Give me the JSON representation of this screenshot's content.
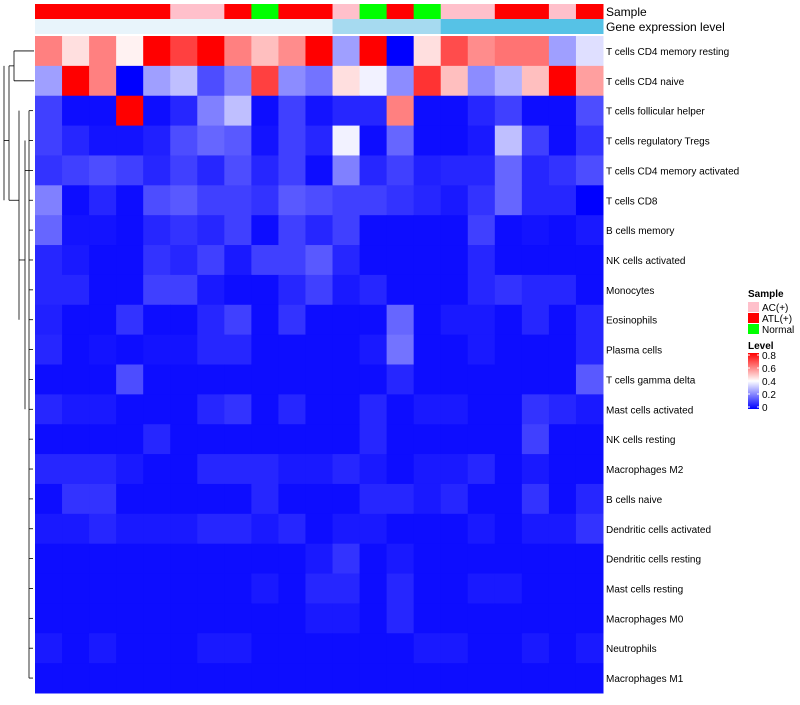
{
  "chart_data": {
    "type": "heatmap",
    "title": "",
    "annotation_tracks": [
      {
        "name": "Sample",
        "values": [
          "ATL(+)",
          "ATL(+)",
          "ATL(+)",
          "ATL(+)",
          "ATL(+)",
          "AC(+)",
          "AC(+)",
          "ATL(+)",
          "Normal",
          "ATL(+)",
          "ATL(+)",
          "AC(+)",
          "Normal",
          "ATL(+)",
          "Normal",
          "AC(+)",
          "AC(+)",
          "ATL(+)",
          "ATL(+)",
          "AC(+)",
          "ATL(+)"
        ]
      },
      {
        "name": "Gene expression level",
        "values": [
          "low",
          "low",
          "low",
          "low",
          "low",
          "low",
          "low",
          "low",
          "low",
          "low",
          "low",
          "mid",
          "mid",
          "mid",
          "mid",
          "high",
          "high",
          "high",
          "high",
          "high",
          "high"
        ]
      }
    ],
    "rows": [
      "T cells CD4 memory resting",
      "T cells CD4 naive",
      "T cells follicular helper",
      "T cells regulatory  Tregs",
      "T cells CD4 memory activated",
      "T cells CD8",
      "B cells memory",
      "NK cells activated",
      "Monocytes",
      "Eosinophils",
      "Plasma cells",
      "T cells gamma delta",
      "Mast cells activated",
      "NK cells resting",
      "Macrophages M2",
      "B cells naive",
      "Dendritic cells activated",
      "Dendritic cells resting",
      "Mast cells resting",
      "Macrophages M0",
      "Neutrophils",
      "Macrophages M1"
    ],
    "values": [
      [
        0.6,
        0.45,
        0.6,
        0.42,
        0.8,
        0.7,
        0.8,
        0.6,
        0.5,
        0.58,
        0.8,
        0.25,
        0.8,
        0.0,
        0.45,
        0.68,
        0.58,
        0.62,
        0.62,
        0.25,
        0.35
      ],
      [
        0.25,
        0.8,
        0.6,
        0.0,
        0.25,
        0.3,
        0.12,
        0.2,
        0.7,
        0.22,
        0.18,
        0.45,
        0.38,
        0.22,
        0.72,
        0.5,
        0.22,
        0.28,
        0.5,
        0.8,
        0.55
      ],
      [
        0.1,
        0.02,
        0.02,
        0.8,
        0.02,
        0.06,
        0.2,
        0.3,
        0.02,
        0.1,
        0.03,
        0.06,
        0.06,
        0.6,
        0.02,
        0.02,
        0.06,
        0.1,
        0.02,
        0.02,
        0.12
      ],
      [
        0.1,
        0.06,
        0.03,
        0.03,
        0.05,
        0.12,
        0.16,
        0.14,
        0.03,
        0.1,
        0.06,
        0.38,
        0.02,
        0.16,
        0.02,
        0.02,
        0.04,
        0.3,
        0.1,
        0.02,
        0.08
      ],
      [
        0.08,
        0.1,
        0.12,
        0.1,
        0.06,
        0.1,
        0.06,
        0.12,
        0.06,
        0.1,
        0.02,
        0.2,
        0.06,
        0.1,
        0.05,
        0.06,
        0.06,
        0.16,
        0.06,
        0.08,
        0.12
      ],
      [
        0.2,
        0.02,
        0.06,
        0.02,
        0.12,
        0.14,
        0.1,
        0.1,
        0.08,
        0.14,
        0.12,
        0.1,
        0.1,
        0.08,
        0.06,
        0.04,
        0.08,
        0.16,
        0.06,
        0.06,
        0.0
      ],
      [
        0.16,
        0.03,
        0.03,
        0.02,
        0.06,
        0.08,
        0.06,
        0.1,
        0.02,
        0.1,
        0.06,
        0.1,
        0.02,
        0.02,
        0.02,
        0.02,
        0.1,
        0.02,
        0.03,
        0.02,
        0.04
      ],
      [
        0.06,
        0.04,
        0.02,
        0.02,
        0.08,
        0.06,
        0.1,
        0.04,
        0.1,
        0.1,
        0.14,
        0.06,
        0.02,
        0.02,
        0.02,
        0.02,
        0.06,
        0.02,
        0.02,
        0.02,
        0.02
      ],
      [
        0.06,
        0.06,
        0.02,
        0.02,
        0.1,
        0.1,
        0.04,
        0.02,
        0.02,
        0.06,
        0.1,
        0.04,
        0.06,
        0.02,
        0.02,
        0.02,
        0.06,
        0.08,
        0.06,
        0.06,
        0.02
      ],
      [
        0.05,
        0.02,
        0.02,
        0.08,
        0.02,
        0.02,
        0.06,
        0.1,
        0.02,
        0.08,
        0.02,
        0.02,
        0.02,
        0.16,
        0.02,
        0.04,
        0.04,
        0.02,
        0.06,
        0.02,
        0.06
      ],
      [
        0.06,
        0.02,
        0.03,
        0.02,
        0.03,
        0.03,
        0.06,
        0.06,
        0.02,
        0.02,
        0.02,
        0.02,
        0.04,
        0.18,
        0.02,
        0.02,
        0.04,
        0.02,
        0.02,
        0.02,
        0.06
      ],
      [
        0.02,
        0.02,
        0.02,
        0.12,
        0.02,
        0.02,
        0.02,
        0.02,
        0.02,
        0.02,
        0.02,
        0.02,
        0.02,
        0.06,
        0.02,
        0.02,
        0.02,
        0.02,
        0.02,
        0.02,
        0.14
      ],
      [
        0.06,
        0.04,
        0.04,
        0.02,
        0.02,
        0.02,
        0.06,
        0.08,
        0.02,
        0.06,
        0.02,
        0.02,
        0.06,
        0.02,
        0.04,
        0.04,
        0.02,
        0.02,
        0.08,
        0.06,
        0.04
      ],
      [
        0.02,
        0.02,
        0.02,
        0.02,
        0.06,
        0.02,
        0.02,
        0.02,
        0.02,
        0.02,
        0.02,
        0.02,
        0.06,
        0.02,
        0.02,
        0.02,
        0.02,
        0.02,
        0.1,
        0.02,
        0.02
      ],
      [
        0.06,
        0.06,
        0.06,
        0.04,
        0.02,
        0.02,
        0.06,
        0.06,
        0.06,
        0.04,
        0.04,
        0.06,
        0.04,
        0.02,
        0.04,
        0.04,
        0.06,
        0.02,
        0.04,
        0.02,
        0.02
      ],
      [
        0.02,
        0.08,
        0.08,
        0.02,
        0.02,
        0.02,
        0.02,
        0.02,
        0.06,
        0.02,
        0.02,
        0.02,
        0.06,
        0.06,
        0.04,
        0.06,
        0.02,
        0.02,
        0.08,
        0.02,
        0.06
      ],
      [
        0.04,
        0.04,
        0.06,
        0.04,
        0.04,
        0.04,
        0.06,
        0.06,
        0.04,
        0.06,
        0.02,
        0.04,
        0.04,
        0.02,
        0.02,
        0.02,
        0.04,
        0.02,
        0.04,
        0.04,
        0.08
      ],
      [
        0.02,
        0.02,
        0.02,
        0.02,
        0.02,
        0.02,
        0.02,
        0.02,
        0.02,
        0.02,
        0.04,
        0.08,
        0.02,
        0.04,
        0.02,
        0.02,
        0.02,
        0.02,
        0.02,
        0.02,
        0.02
      ],
      [
        0.02,
        0.02,
        0.02,
        0.02,
        0.02,
        0.02,
        0.02,
        0.02,
        0.04,
        0.02,
        0.06,
        0.06,
        0.02,
        0.06,
        0.02,
        0.02,
        0.04,
        0.04,
        0.02,
        0.02,
        0.02
      ],
      [
        0.02,
        0.02,
        0.02,
        0.02,
        0.02,
        0.02,
        0.02,
        0.02,
        0.02,
        0.02,
        0.04,
        0.04,
        0.02,
        0.06,
        0.02,
        0.02,
        0.02,
        0.02,
        0.02,
        0.02,
        0.02
      ],
      [
        0.04,
        0.02,
        0.04,
        0.02,
        0.02,
        0.02,
        0.04,
        0.04,
        0.02,
        0.02,
        0.02,
        0.02,
        0.02,
        0.02,
        0.04,
        0.04,
        0.02,
        0.02,
        0.04,
        0.02,
        0.04
      ],
      [
        0.02,
        0.02,
        0.02,
        0.02,
        0.02,
        0.02,
        0.02,
        0.02,
        0.02,
        0.02,
        0.02,
        0.02,
        0.02,
        0.02,
        0.02,
        0.02,
        0.02,
        0.02,
        0.02,
        0.02,
        0.02
      ]
    ],
    "color_scale": {
      "low": "#0000ff",
      "mid": "#ffffff",
      "high": "#ff0000",
      "min": 0,
      "mid_value": 0.4,
      "max": 0.8
    },
    "legends": {
      "sample": {
        "title": "Sample",
        "items": [
          {
            "label": "AC(+)",
            "color": "#ffc0cb"
          },
          {
            "label": "ATL(+)",
            "color": "#ff0000"
          },
          {
            "label": "Normal",
            "color": "#00ff00"
          }
        ]
      },
      "level": {
        "title": "Level",
        "ticks": [
          {
            "value": 0.8,
            "label": "0.8"
          },
          {
            "value": 0.6,
            "label": "0.6"
          },
          {
            "value": 0.4,
            "label": "0.4"
          },
          {
            "value": 0.2,
            "label": "0.2"
          },
          {
            "value": 0,
            "label": "0"
          }
        ]
      }
    },
    "gene_level_colors": {
      "low": "#e8f4fb",
      "mid": "#a6daf0",
      "high": "#56c2e6"
    }
  }
}
